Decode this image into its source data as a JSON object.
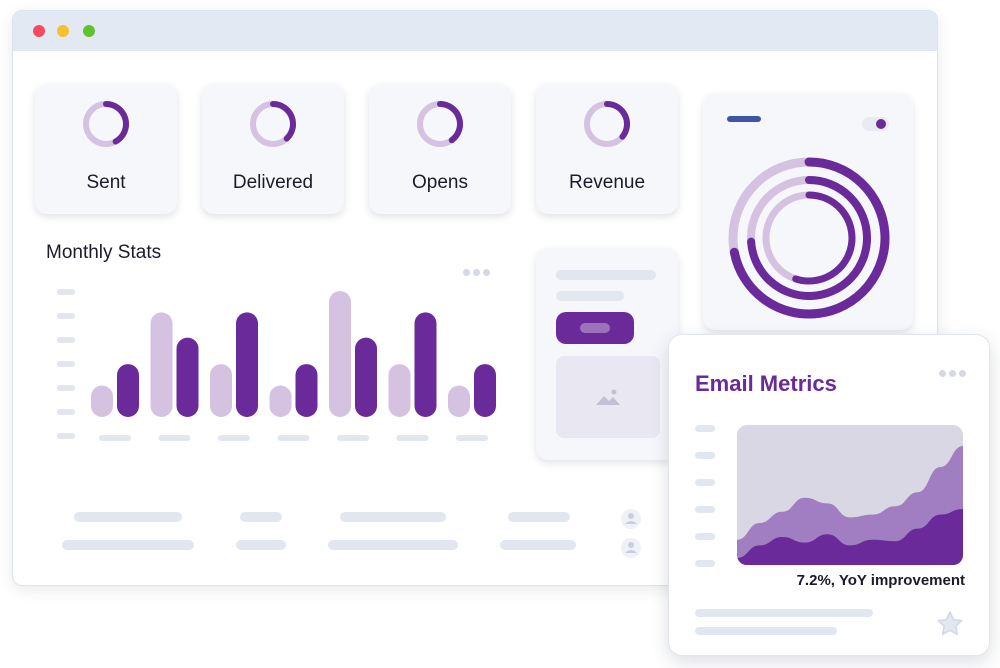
{
  "window": {
    "controls": [
      "close-dot",
      "minimize-dot",
      "maximize-dot"
    ]
  },
  "kpis": [
    {
      "label": "Sent",
      "fraction": 0.42
    },
    {
      "label": "Delivered",
      "fraction": 0.38
    },
    {
      "label": "Opens",
      "fraction": 0.4
    },
    {
      "label": "Revenue",
      "fraction": 0.36
    }
  ],
  "monthly_stats": {
    "title": "Monthly Stats"
  },
  "email_metrics": {
    "title": "Email Metrics",
    "caption": "7.2%, YoY improvement"
  },
  "icons": {
    "more": "more-dots-icon",
    "toggle": "toggle-icon",
    "image_placeholder": "image-icon",
    "user": "user-icon",
    "favorite": "star-icon"
  },
  "colors": {
    "accent": "#6a2a9a",
    "accent_light": "#d5c2e1",
    "placeholder": "#e1e6ef",
    "card_bg": "#f6f7fb",
    "window_bar": "#e3e9f3",
    "toggle_track": "#e9ebf1",
    "pill_bar": "#3f56a7"
  },
  "chart_data": [
    {
      "type": "bar",
      "categories": [
        "",
        "",
        "",
        "",
        "",
        "",
        ""
      ],
      "series": [
        {
          "values": [
            0.25,
            0.83,
            0.42,
            0.25,
            1.0,
            0.42,
            0.25
          ]
        },
        {
          "values": [
            0.42,
            0.63,
            0.83,
            0.42,
            0.63,
            0.83,
            0.42
          ]
        }
      ],
      "ylim": [
        0,
        1
      ],
      "grid": false
    },
    {
      "type": "area",
      "x": [
        0,
        1,
        2,
        3,
        4,
        5,
        6,
        7,
        8,
        9,
        10
      ],
      "series": [
        {
          "values": [
            0.18,
            0.3,
            0.38,
            0.48,
            0.44,
            0.34,
            0.36,
            0.42,
            0.52,
            0.7,
            0.85
          ]
        },
        {
          "values": [
            0.05,
            0.14,
            0.2,
            0.16,
            0.22,
            0.14,
            0.18,
            0.17,
            0.26,
            0.36,
            0.4
          ]
        }
      ],
      "ylim": [
        0,
        1
      ],
      "grid": false
    },
    {
      "type": "pie",
      "style": "concentric-rings",
      "rings": [
        0.72,
        0.74,
        0.55
      ]
    }
  ]
}
